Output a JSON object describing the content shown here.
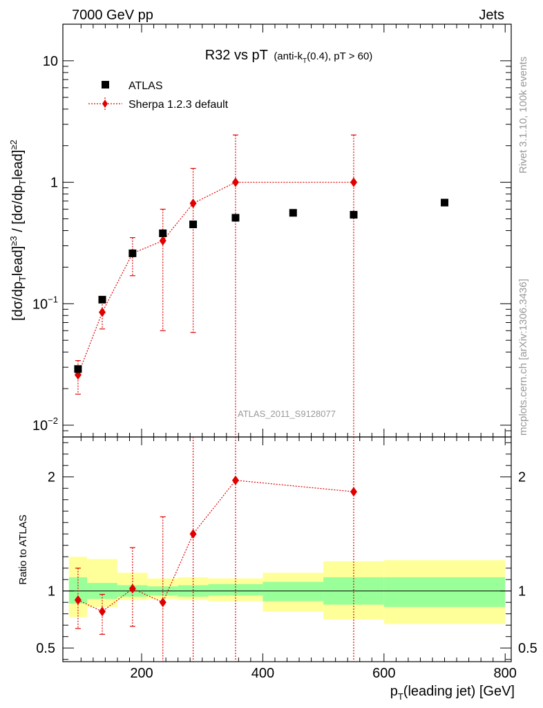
{
  "header": {
    "left": "7000 GeV pp",
    "right": "Jets"
  },
  "title": {
    "main": "R32 vs pT",
    "sub": "(anti-k",
    "sub_sub": "T",
    "sub_tail": "(0.4), pT > 60)"
  },
  "side_labels": {
    "rivet": "Rivet 3.1.10,  100k events",
    "mcplots": "mcplots.cern.ch [arXiv:1306.3436]"
  },
  "watermark": "ATLAS_2011_S9128077",
  "colors": {
    "data": "#000000",
    "mc": "#e00000",
    "band_inner": "#99ff99",
    "band_outer": "#ffff99"
  },
  "chart_data": [
    {
      "type": "scatter",
      "name": "main",
      "yscale": "log",
      "xlim": [
        70,
        810
      ],
      "ylim": [
        0.008,
        20
      ],
      "ylabel": "[dσ/dp_T lead]^≥3 / [dσ/dp_T lead]^≥2",
      "y_ticks": [
        {
          "value": 0.01,
          "base": "10",
          "exp": "−2"
        },
        {
          "value": 0.1,
          "base": "10",
          "exp": "−1"
        },
        {
          "value": 1,
          "base": "1",
          "exp": ""
        },
        {
          "value": 10,
          "base": "10",
          "exp": ""
        }
      ],
      "legend_position": "top-left",
      "series": [
        {
          "name": "ATLAS",
          "marker": "square",
          "x": [
            95,
            135,
            185,
            235,
            285,
            355,
            450,
            550,
            700
          ],
          "y": [
            0.029,
            0.108,
            0.26,
            0.38,
            0.45,
            0.51,
            0.56,
            0.54,
            0.68
          ]
        },
        {
          "name": "Sherpa 1.2.3 default",
          "marker": "diamond",
          "x": [
            95,
            135,
            185,
            235,
            285,
            355,
            550
          ],
          "y": [
            0.026,
            0.085,
            0.26,
            0.33,
            0.67,
            1.0,
            1.0
          ],
          "y_low": [
            0.018,
            0.062,
            0.17,
            0.06,
            0.058,
            0.0,
            0.0
          ],
          "y_high": [
            0.034,
            0.11,
            0.35,
            0.6,
            1.3,
            2.45,
            2.45
          ]
        }
      ]
    },
    {
      "type": "scatter",
      "name": "ratio",
      "xlim": [
        70,
        810
      ],
      "ylim": [
        0.38,
        2.35
      ],
      "xlabel_main": "p",
      "xlabel_sub": "T",
      "xlabel_tail": "(leading jet) [GeV]",
      "ylabel": "Ratio to ATLAS",
      "x_ticks": [
        200,
        400,
        600,
        800
      ],
      "y_ticks": [
        0.5,
        1,
        2
      ],
      "series": [
        {
          "name": "Sherpa 1.2.3 default",
          "x": [
            95,
            135,
            185,
            235,
            285,
            355,
            550
          ],
          "y": [
            0.92,
            0.82,
            1.02,
            0.9,
            1.5,
            1.97,
            1.87
          ],
          "y_low": [
            0.67,
            0.62,
            0.69,
            0.0,
            0.0,
            0.0,
            0.0
          ],
          "y_high": [
            1.2,
            0.97,
            1.38,
            1.65,
            2.35,
            2.35,
            2.35
          ]
        }
      ],
      "bands": [
        {
          "x0": 80,
          "x1": 110,
          "inner": [
            0.89,
            1.12
          ],
          "outer": [
            0.77,
            1.3
          ]
        },
        {
          "x0": 110,
          "x1": 160,
          "inner": [
            0.93,
            1.07
          ],
          "outer": [
            0.86,
            1.28
          ]
        },
        {
          "x0": 160,
          "x1": 210,
          "inner": [
            0.95,
            1.05
          ],
          "outer": [
            0.92,
            1.16
          ]
        },
        {
          "x0": 210,
          "x1": 260,
          "inner": [
            0.96,
            1.04
          ],
          "outer": [
            0.93,
            1.11
          ]
        },
        {
          "x0": 260,
          "x1": 310,
          "inner": [
            0.95,
            1.05
          ],
          "outer": [
            0.92,
            1.12
          ]
        },
        {
          "x0": 310,
          "x1": 400,
          "inner": [
            0.96,
            1.06
          ],
          "outer": [
            0.91,
            1.11
          ]
        },
        {
          "x0": 400,
          "x1": 500,
          "inner": [
            0.91,
            1.08
          ],
          "outer": [
            0.82,
            1.16
          ]
        },
        {
          "x0": 500,
          "x1": 600,
          "inner": [
            0.88,
            1.12
          ],
          "outer": [
            0.75,
            1.26
          ]
        },
        {
          "x0": 600,
          "x1": 800,
          "inner": [
            0.86,
            1.12
          ],
          "outer": [
            0.71,
            1.27
          ]
        }
      ]
    }
  ]
}
